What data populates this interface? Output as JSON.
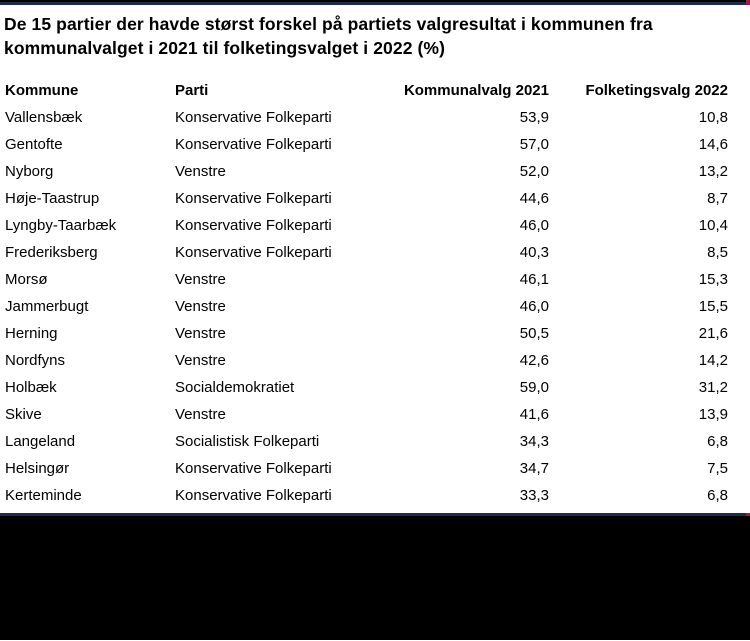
{
  "title_lines": [
    "De 15 partier der havde størst forskel på partiets valgresultat i kommunen fra",
    "kommunalvalget i 2021 til folketingsvalget i 2022 (%)"
  ],
  "chart_data": {
    "type": "table",
    "title": "De 15 partier der havde størst forskel på partiets valgresultat i kommunen fra kommunalvalget i 2021 til folketingsvalget i 2022 (%)",
    "columns": [
      "Kommune",
      "Parti",
      "Kommunalvalg 2021",
      "Folketingsvalg 2022"
    ],
    "rows": [
      [
        "Vallensbæk",
        "Konservative Folkeparti",
        "53,9",
        "10,8"
      ],
      [
        "Gentofte",
        "Konservative Folkeparti",
        "57,0",
        "14,6"
      ],
      [
        "Nyborg",
        "Venstre",
        "52,0",
        "13,2"
      ],
      [
        "Høje-Taastrup",
        "Konservative Folkeparti",
        "44,6",
        "8,7"
      ],
      [
        "Lyngby-Taarbæk",
        "Konservative Folkeparti",
        "46,0",
        "10,4"
      ],
      [
        "Frederiksberg",
        "Konservative Folkeparti",
        "40,3",
        "8,5"
      ],
      [
        "Morsø",
        "Venstre",
        "46,1",
        "15,3"
      ],
      [
        "Jammerbugt",
        "Venstre",
        "46,0",
        "15,5"
      ],
      [
        "Herning",
        "Venstre",
        "50,5",
        "21,6"
      ],
      [
        "Nordfyns",
        "Venstre",
        "42,6",
        "14,2"
      ],
      [
        "Holbæk",
        "Socialdemokratiet",
        "59,0",
        "31,2"
      ],
      [
        "Skive",
        "Venstre",
        "41,6",
        "13,9"
      ],
      [
        "Langeland",
        "Socialistisk Folkeparti",
        "34,3",
        "6,8"
      ],
      [
        "Helsingør",
        "Konservative Folkeparti",
        "34,7",
        "7,5"
      ],
      [
        "Kerteminde",
        "Konservative Folkeparti",
        "33,3",
        "6,8"
      ]
    ],
    "value_unit": "%",
    "layout": {
      "grid": false,
      "numeric_columns_right_aligned": true
    }
  },
  "colors": {
    "rule_navy": "#1F2A4E",
    "rule_red_tip": "#8E2247",
    "footer_black": "#000000",
    "text": "#000000",
    "background": "#FFFFFF"
  }
}
